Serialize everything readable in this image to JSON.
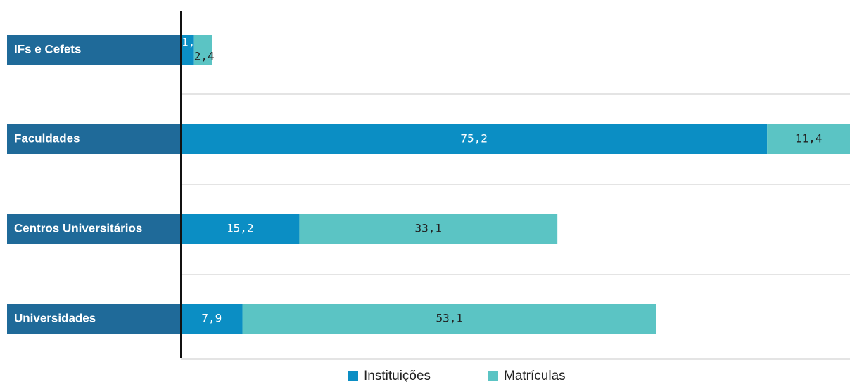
{
  "chart_data": {
    "type": "stacked-bar-horizontal",
    "categories": [
      "IFs e Cefets",
      "Faculdades",
      "Centros Universitários",
      "Universidades"
    ],
    "series": [
      {
        "name": "Instituições",
        "color": "#0b8ec4",
        "values": [
          1.6,
          75.2,
          15.2,
          7.9
        ],
        "value_labels": [
          "1,6",
          "75,2",
          "15,2",
          "7,9"
        ]
      },
      {
        "name": "Matrículas",
        "color": "#5bc4c4",
        "values": [
          2.4,
          11.4,
          33.1,
          53.1
        ],
        "value_labels": [
          "2,4",
          "11,4",
          "33,1",
          "53,1"
        ]
      }
    ],
    "legend": "bottom"
  }
}
